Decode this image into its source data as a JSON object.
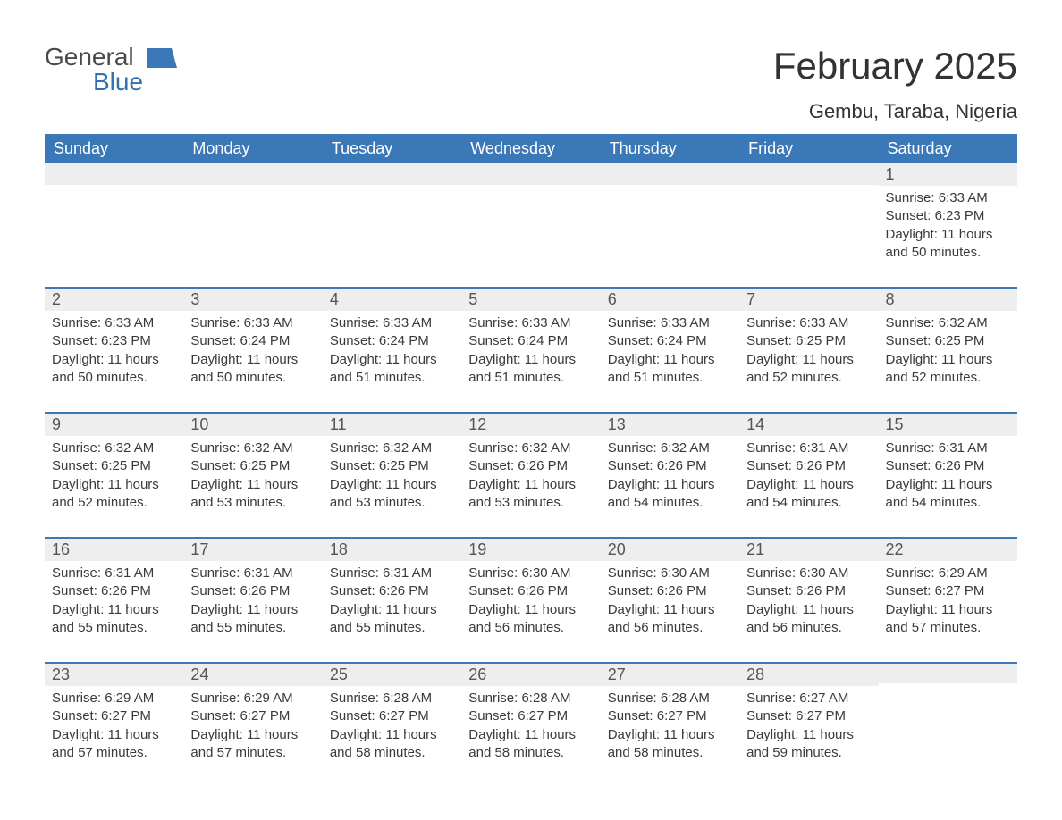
{
  "logo": {
    "word1": "General",
    "word2": "Blue",
    "text_color": "#4a4a4a",
    "blue_color": "#3070b3",
    "icon_color": "#3b78b8"
  },
  "title": {
    "month": "February 2025",
    "location": "Gembu, Taraba, Nigeria",
    "month_fontsize": 42,
    "location_fontsize": 22
  },
  "colors": {
    "header_bg": "#3b78b8",
    "header_text": "#ffffff",
    "daynum_bg": "#eeeeee",
    "daynum_text": "#555555",
    "body_text": "#3a3a3a",
    "row_border": "#3b78b8",
    "page_bg": "#ffffff"
  },
  "columns": [
    "Sunday",
    "Monday",
    "Tuesday",
    "Wednesday",
    "Thursday",
    "Friday",
    "Saturday"
  ],
  "first_weekday_index": 6,
  "days": [
    {
      "n": 1,
      "sunrise": "6:33 AM",
      "sunset": "6:23 PM",
      "daylight": "11 hours and 50 minutes."
    },
    {
      "n": 2,
      "sunrise": "6:33 AM",
      "sunset": "6:23 PM",
      "daylight": "11 hours and 50 minutes."
    },
    {
      "n": 3,
      "sunrise": "6:33 AM",
      "sunset": "6:24 PM",
      "daylight": "11 hours and 50 minutes."
    },
    {
      "n": 4,
      "sunrise": "6:33 AM",
      "sunset": "6:24 PM",
      "daylight": "11 hours and 51 minutes."
    },
    {
      "n": 5,
      "sunrise": "6:33 AM",
      "sunset": "6:24 PM",
      "daylight": "11 hours and 51 minutes."
    },
    {
      "n": 6,
      "sunrise": "6:33 AM",
      "sunset": "6:24 PM",
      "daylight": "11 hours and 51 minutes."
    },
    {
      "n": 7,
      "sunrise": "6:33 AM",
      "sunset": "6:25 PM",
      "daylight": "11 hours and 52 minutes."
    },
    {
      "n": 8,
      "sunrise": "6:32 AM",
      "sunset": "6:25 PM",
      "daylight": "11 hours and 52 minutes."
    },
    {
      "n": 9,
      "sunrise": "6:32 AM",
      "sunset": "6:25 PM",
      "daylight": "11 hours and 52 minutes."
    },
    {
      "n": 10,
      "sunrise": "6:32 AM",
      "sunset": "6:25 PM",
      "daylight": "11 hours and 53 minutes."
    },
    {
      "n": 11,
      "sunrise": "6:32 AM",
      "sunset": "6:25 PM",
      "daylight": "11 hours and 53 minutes."
    },
    {
      "n": 12,
      "sunrise": "6:32 AM",
      "sunset": "6:26 PM",
      "daylight": "11 hours and 53 minutes."
    },
    {
      "n": 13,
      "sunrise": "6:32 AM",
      "sunset": "6:26 PM",
      "daylight": "11 hours and 54 minutes."
    },
    {
      "n": 14,
      "sunrise": "6:31 AM",
      "sunset": "6:26 PM",
      "daylight": "11 hours and 54 minutes."
    },
    {
      "n": 15,
      "sunrise": "6:31 AM",
      "sunset": "6:26 PM",
      "daylight": "11 hours and 54 minutes."
    },
    {
      "n": 16,
      "sunrise": "6:31 AM",
      "sunset": "6:26 PM",
      "daylight": "11 hours and 55 minutes."
    },
    {
      "n": 17,
      "sunrise": "6:31 AM",
      "sunset": "6:26 PM",
      "daylight": "11 hours and 55 minutes."
    },
    {
      "n": 18,
      "sunrise": "6:31 AM",
      "sunset": "6:26 PM",
      "daylight": "11 hours and 55 minutes."
    },
    {
      "n": 19,
      "sunrise": "6:30 AM",
      "sunset": "6:26 PM",
      "daylight": "11 hours and 56 minutes."
    },
    {
      "n": 20,
      "sunrise": "6:30 AM",
      "sunset": "6:26 PM",
      "daylight": "11 hours and 56 minutes."
    },
    {
      "n": 21,
      "sunrise": "6:30 AM",
      "sunset": "6:26 PM",
      "daylight": "11 hours and 56 minutes."
    },
    {
      "n": 22,
      "sunrise": "6:29 AM",
      "sunset": "6:27 PM",
      "daylight": "11 hours and 57 minutes."
    },
    {
      "n": 23,
      "sunrise": "6:29 AM",
      "sunset": "6:27 PM",
      "daylight": "11 hours and 57 minutes."
    },
    {
      "n": 24,
      "sunrise": "6:29 AM",
      "sunset": "6:27 PM",
      "daylight": "11 hours and 57 minutes."
    },
    {
      "n": 25,
      "sunrise": "6:28 AM",
      "sunset": "6:27 PM",
      "daylight": "11 hours and 58 minutes."
    },
    {
      "n": 26,
      "sunrise": "6:28 AM",
      "sunset": "6:27 PM",
      "daylight": "11 hours and 58 minutes."
    },
    {
      "n": 27,
      "sunrise": "6:28 AM",
      "sunset": "6:27 PM",
      "daylight": "11 hours and 58 minutes."
    },
    {
      "n": 28,
      "sunrise": "6:27 AM",
      "sunset": "6:27 PM",
      "daylight": "11 hours and 59 minutes."
    }
  ],
  "labels": {
    "sunrise": "Sunrise: ",
    "sunset": "Sunset: ",
    "daylight": "Daylight: "
  }
}
